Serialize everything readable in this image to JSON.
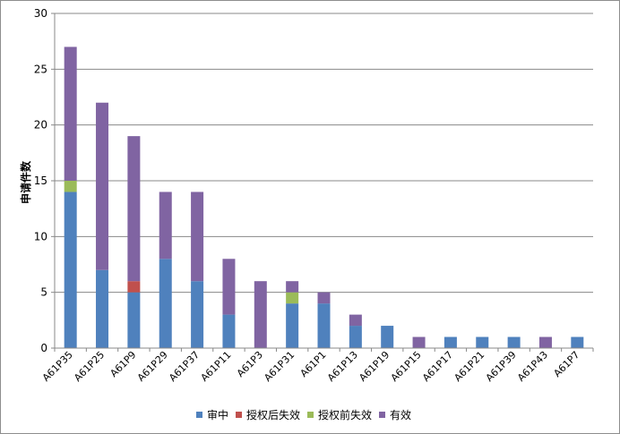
{
  "chart_data": {
    "type": "bar",
    "stacked": true,
    "ylabel": "申请件数",
    "xlabel": "",
    "ylim": [
      0,
      30
    ],
    "yticks": [
      0,
      5,
      10,
      15,
      20,
      25,
      30
    ],
    "grid": true,
    "legend_position": "bottom",
    "categories": [
      "A61P35",
      "A61P25",
      "A61P9",
      "A61P29",
      "A61P37",
      "A61P11",
      "A61P3",
      "A61P31",
      "A61P1",
      "A61P13",
      "A61P19",
      "A61P15",
      "A61P17",
      "A61P21",
      "A61P39",
      "A61P43",
      "A61P7"
    ],
    "series": [
      {
        "name": "审中",
        "color": "#4f81bd",
        "values": [
          14,
          7,
          5,
          8,
          6,
          3,
          0,
          4,
          4,
          2,
          2,
          0,
          1,
          1,
          1,
          0,
          1
        ]
      },
      {
        "name": "授权后失效",
        "color": "#c0504d",
        "values": [
          0,
          0,
          1,
          0,
          0,
          0,
          0,
          0,
          0,
          0,
          0,
          0,
          0,
          0,
          0,
          0,
          0
        ]
      },
      {
        "name": "授权前失效",
        "color": "#9bbb59",
        "values": [
          1,
          0,
          0,
          0,
          0,
          0,
          0,
          1,
          0,
          0,
          0,
          0,
          0,
          0,
          0,
          0,
          0
        ]
      },
      {
        "name": "有效",
        "color": "#8064a2",
        "values": [
          12,
          15,
          13,
          6,
          8,
          5,
          6,
          1,
          1,
          1,
          0,
          1,
          0,
          0,
          0,
          1,
          0
        ]
      }
    ]
  }
}
